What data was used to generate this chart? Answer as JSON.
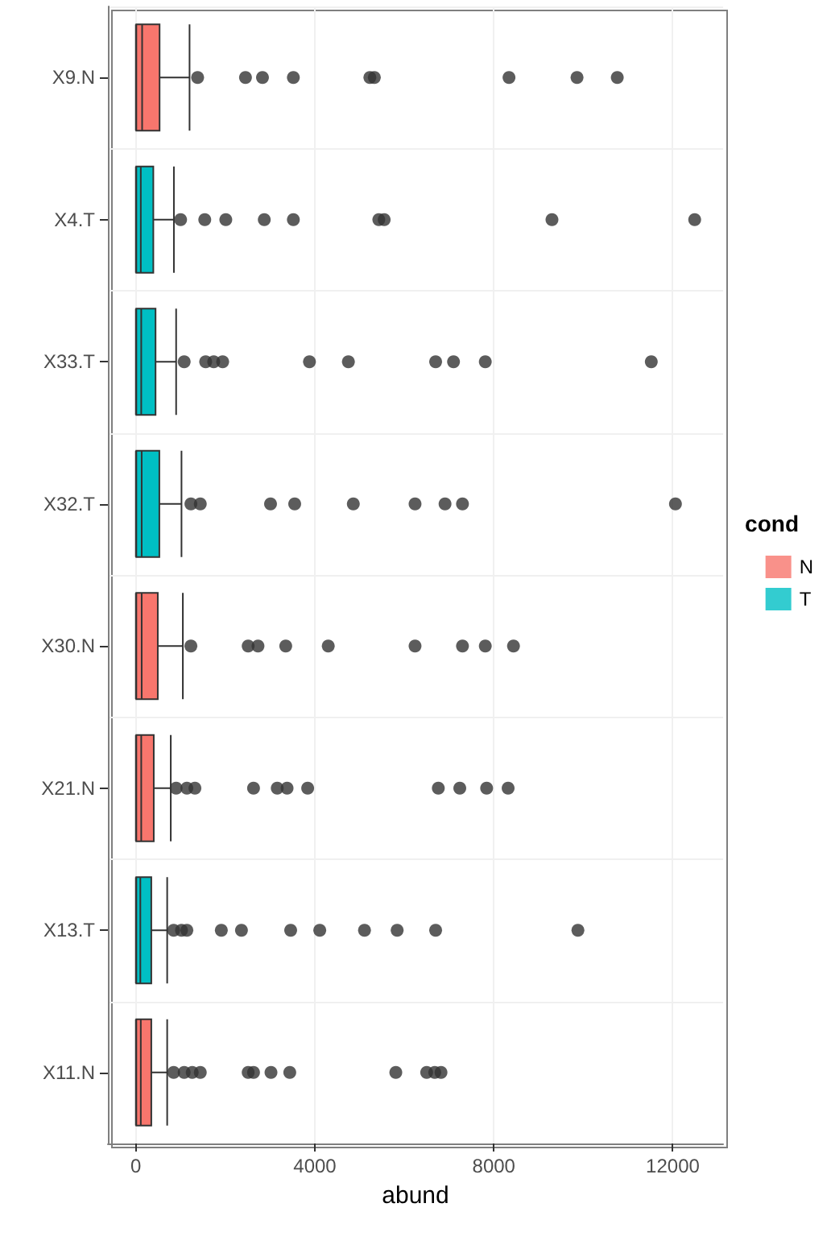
{
  "chart_data": {
    "type": "box",
    "orientation": "horizontal",
    "xlabel": "abund",
    "legend_title": "cond",
    "legend": "right",
    "grid": true,
    "categories": [
      "X9.N",
      "X4.T",
      "X33.T",
      "X32.T",
      "X30.N",
      "X21.N",
      "X13.T",
      "X11.N"
    ],
    "xlim": [
      -625,
      13125
    ],
    "xticks": [
      0,
      4000,
      8000,
      12000
    ],
    "series": [
      {
        "name": "N",
        "color": "#f8766d",
        "boxes": [
          {
            "low": 0,
            "q1": 10,
            "median": 140,
            "q3": 530,
            "high": 1200,
            "outliers": [
              1380,
              2450,
              2830,
              3520,
              5230,
              5330,
              8340,
              9860,
              10760
            ]
          },
          null,
          null,
          null,
          {
            "low": 0,
            "q1": 10,
            "median": 130,
            "q3": 490,
            "high": 1050,
            "outliers": [
              1230,
              2510,
              2730,
              3350,
              4300,
              6240,
              7300,
              7810,
              8440
            ]
          },
          {
            "low": 0,
            "q1": 10,
            "median": 120,
            "q3": 400,
            "high": 780,
            "outliers": [
              900,
              1140,
              1320,
              2630,
              3160,
              3380,
              3840,
              6760,
              7240,
              7840,
              8320
            ]
          },
          null,
          {
            "low": 0,
            "q1": 10,
            "median": 110,
            "q3": 345,
            "high": 700,
            "outliers": [
              845,
              1080,
              1260,
              1440,
              2510,
              2630,
              3020,
              3440,
              5810,
              6500,
              6680,
              6820
            ]
          }
        ]
      },
      {
        "name": "T",
        "color": "#00bfc4",
        "boxes": [
          null,
          {
            "low": 0,
            "q1": 10,
            "median": 110,
            "q3": 390,
            "high": 850,
            "outliers": [
              1000,
              1540,
              2010,
              2870,
              3520,
              5430,
              5550,
              9300,
              12490
            ]
          },
          {
            "low": 0,
            "q1": 10,
            "median": 120,
            "q3": 440,
            "high": 900,
            "outliers": [
              1080,
              1560,
              1740,
              1940,
              3880,
              4750,
              6700,
              7100,
              7810,
              11520
            ]
          },
          {
            "low": 0,
            "q1": 10,
            "median": 130,
            "q3": 525,
            "high": 1020,
            "outliers": [
              1230,
              1440,
              3010,
              3550,
              4860,
              6240,
              6910,
              7300,
              12060
            ]
          },
          null,
          null,
          {
            "low": 0,
            "q1": 10,
            "median": 100,
            "q3": 345,
            "high": 700,
            "outliers": [
              845,
              1020,
              1140,
              1910,
              2360,
              3460,
              4110,
              5110,
              5840,
              6700,
              9880
            ]
          },
          null
        ]
      }
    ]
  }
}
